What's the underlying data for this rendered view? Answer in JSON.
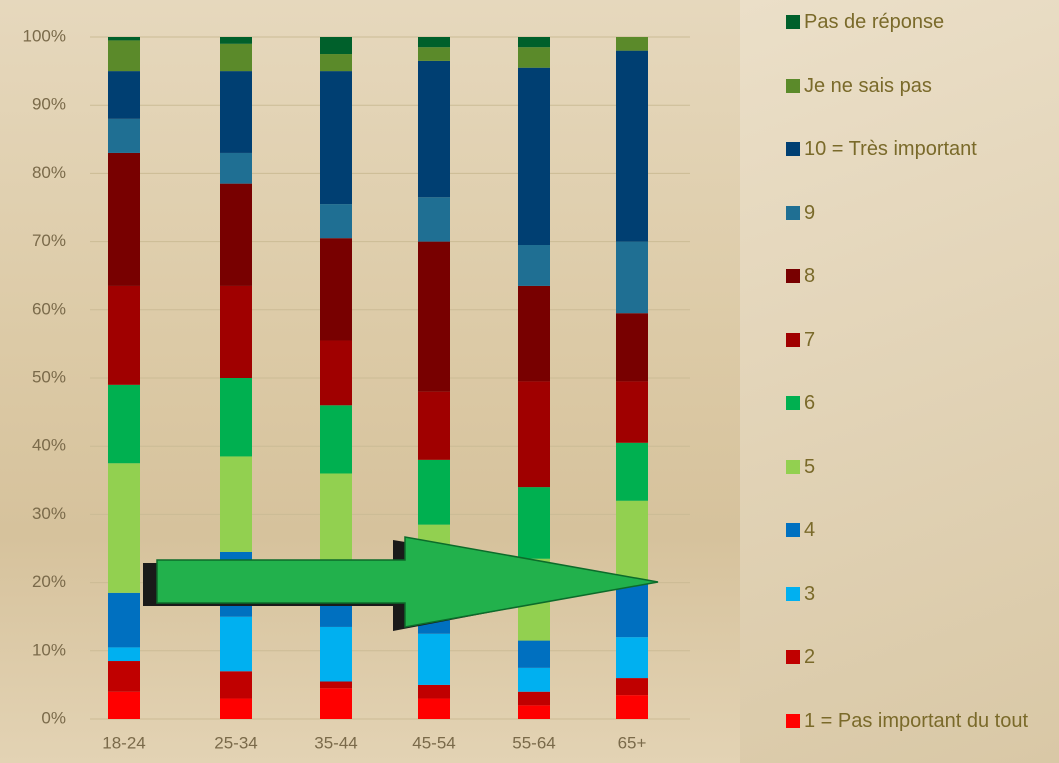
{
  "chart_data": {
    "type": "stacked_bar",
    "categories": [
      "18-24",
      "25-34",
      "35-44",
      "45-54",
      "55-64",
      "65+"
    ],
    "series": [
      {
        "name": "1 = Pas important du tout",
        "color": "#ff0000",
        "values": [
          4,
          3,
          4.5,
          3,
          2,
          3.5
        ]
      },
      {
        "name": "2",
        "color": "#c00000",
        "values": [
          4.5,
          4,
          1,
          2,
          2,
          2.5
        ]
      },
      {
        "name": "3",
        "color": "#00b0f0",
        "values": [
          2,
          8,
          8,
          7.5,
          3.5,
          6
        ]
      },
      {
        "name": "4",
        "color": "#0070c0",
        "values": [
          8,
          9.5,
          8.5,
          2,
          4,
          8
        ]
      },
      {
        "name": "5",
        "color": "#92d050",
        "values": [
          19,
          14,
          14,
          14,
          12,
          12
        ]
      },
      {
        "name": "6",
        "color": "#00b050",
        "values": [
          11.5,
          11.5,
          10,
          9.5,
          10.5,
          8.5
        ]
      },
      {
        "name": "7",
        "color": "#a00000",
        "values": [
          14.5,
          13.5,
          9.5,
          10,
          15.5,
          9
        ]
      },
      {
        "name": "8",
        "color": "#780000",
        "values": [
          19.5,
          15,
          15,
          22,
          14,
          10
        ]
      },
      {
        "name": "9",
        "color": "#1f6f93",
        "values": [
          5,
          4.5,
          5,
          6.5,
          6,
          10.5
        ]
      },
      {
        "name": "10 = Très important",
        "color": "#003f72",
        "values": [
          7,
          12,
          19.5,
          20,
          26,
          28
        ]
      },
      {
        "name": "Je ne sais pas",
        "color": "#5b8a2a",
        "values": [
          4.5,
          4,
          2.5,
          2,
          3,
          2
        ]
      },
      {
        "name": "Pas de réponse",
        "color": "#00602b",
        "values": [
          0.5,
          1,
          2.5,
          1.5,
          1.5,
          0
        ]
      }
    ],
    "ylim": [
      0,
      100
    ],
    "yticks": [
      {
        "value": 0,
        "label": "0%"
      },
      {
        "value": 10,
        "label": "10%"
      },
      {
        "value": 20,
        "label": "20%"
      },
      {
        "value": 30,
        "label": "30%"
      },
      {
        "value": 40,
        "label": "40%"
      },
      {
        "value": 50,
        "label": "50%"
      },
      {
        "value": 60,
        "label": "60%"
      },
      {
        "value": 70,
        "label": "70%"
      },
      {
        "value": 80,
        "label": "80%"
      },
      {
        "value": 90,
        "label": "90%"
      },
      {
        "value": 100,
        "label": "100%"
      }
    ],
    "grid": true
  }
}
